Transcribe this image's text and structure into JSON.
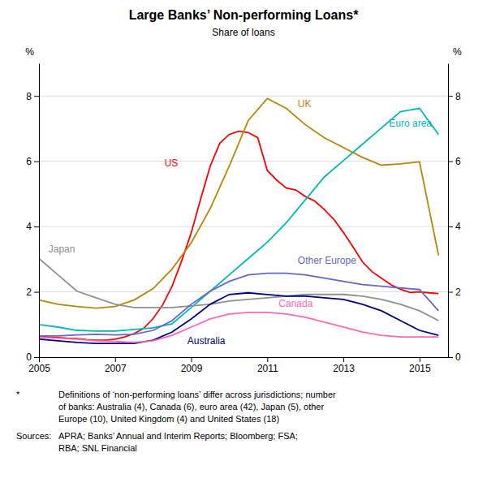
{
  "chart_data": {
    "type": "line",
    "title": "Large Banks’ Non-performing Loans*",
    "subtitle": "Share of loans",
    "ylabel": "%",
    "y2label": "%",
    "xlim": [
      2005,
      2015.75
    ],
    "xticks": [
      2005,
      2007,
      2009,
      2011,
      2013,
      2015
    ],
    "ylim": [
      0,
      9
    ],
    "yticks": [
      0,
      2,
      4,
      6,
      8
    ],
    "y2lim": [
      0,
      9
    ],
    "y2ticks": [
      0,
      2,
      4,
      6,
      8
    ],
    "grid": true,
    "series": [
      {
        "name": "US",
        "color": "#FF0000",
        "x": [
          2005.0,
          2005.25,
          2005.5,
          2005.75,
          2006.0,
          2006.25,
          2006.5,
          2006.75,
          2007.0,
          2007.25,
          2007.5,
          2007.75,
          2008.0,
          2008.25,
          2008.5,
          2008.75,
          2009.0,
          2009.25,
          2009.5,
          2009.75,
          2010.0,
          2010.25,
          2010.5,
          2010.75,
          2011.0,
          2011.25,
          2011.5,
          2011.75,
          2012.0,
          2012.25,
          2012.5,
          2012.75,
          2013.0,
          2013.25,
          2013.5,
          2013.75,
          2014.0,
          2014.25,
          2014.5,
          2014.75,
          2015.0,
          2015.25,
          2015.5
        ],
        "values": [
          0.65,
          0.62,
          0.6,
          0.58,
          0.57,
          0.54,
          0.52,
          0.52,
          0.55,
          0.62,
          0.72,
          0.88,
          1.18,
          1.6,
          2.18,
          2.95,
          3.8,
          4.85,
          5.85,
          6.55,
          6.82,
          6.92,
          6.88,
          6.72,
          5.72,
          5.42,
          5.18,
          5.12,
          4.92,
          4.78,
          4.52,
          4.22,
          3.82,
          3.38,
          2.92,
          2.62,
          2.42,
          2.22,
          2.08,
          1.98,
          2.0,
          1.97,
          1.95
        ]
      },
      {
        "name": "UK",
        "color": "#B8860B",
        "x": [
          2005.0,
          2005.5,
          2006.0,
          2006.5,
          2007.0,
          2007.5,
          2008.0,
          2008.5,
          2009.0,
          2009.5,
          2010.0,
          2010.5,
          2011.0,
          2011.5,
          2012.0,
          2012.5,
          2013.0,
          2013.5,
          2014.0,
          2014.5,
          2015.0,
          2015.5
        ],
        "values": [
          1.75,
          1.62,
          1.55,
          1.5,
          1.55,
          1.75,
          2.1,
          2.7,
          3.5,
          4.55,
          5.85,
          7.25,
          7.92,
          7.62,
          7.12,
          6.72,
          6.42,
          6.12,
          5.88,
          5.92,
          5.98,
          3.12
        ]
      },
      {
        "name": "Euro area",
        "color": "#00B8B8",
        "x": [
          2005.0,
          2005.5,
          2006.0,
          2006.5,
          2007.0,
          2007.5,
          2008.0,
          2008.5,
          2009.0,
          2009.5,
          2010.0,
          2010.5,
          2011.0,
          2011.5,
          2012.0,
          2012.5,
          2013.0,
          2013.5,
          2014.0,
          2014.5,
          2015.0,
          2015.5
        ],
        "values": [
          1.0,
          0.92,
          0.82,
          0.8,
          0.8,
          0.85,
          0.9,
          1.02,
          1.52,
          2.02,
          2.52,
          3.02,
          3.52,
          4.12,
          4.82,
          5.52,
          6.02,
          6.52,
          7.02,
          7.52,
          7.62,
          6.82
        ]
      },
      {
        "name": "Japan",
        "color": "#909090",
        "x": [
          2005.0,
          2005.5,
          2006.0,
          2006.5,
          2007.0,
          2007.5,
          2008.0,
          2008.5,
          2009.0,
          2009.5,
          2010.0,
          2010.5,
          2011.0,
          2011.5,
          2012.0,
          2012.5,
          2013.0,
          2013.5,
          2014.0,
          2014.5,
          2015.0,
          2015.5
        ],
        "values": [
          3.02,
          2.52,
          2.02,
          1.82,
          1.62,
          1.52,
          1.52,
          1.52,
          1.57,
          1.62,
          1.72,
          1.77,
          1.82,
          1.87,
          1.92,
          1.92,
          1.92,
          1.87,
          1.77,
          1.62,
          1.42,
          1.12
        ]
      },
      {
        "name": "Other Europe",
        "color": "#6666CC",
        "x": [
          2005.0,
          2005.5,
          2006.0,
          2006.5,
          2007.0,
          2007.5,
          2008.0,
          2008.5,
          2009.0,
          2009.5,
          2010.0,
          2010.5,
          2011.0,
          2011.5,
          2012.0,
          2012.5,
          2013.0,
          2013.5,
          2014.0,
          2014.5,
          2015.0,
          2015.5
        ],
        "values": [
          0.65,
          0.65,
          0.68,
          0.7,
          0.68,
          0.7,
          0.82,
          1.12,
          1.62,
          2.02,
          2.32,
          2.52,
          2.57,
          2.57,
          2.52,
          2.42,
          2.32,
          2.22,
          2.17,
          2.12,
          2.07,
          1.42
        ]
      },
      {
        "name": "Australia",
        "color": "#000080",
        "x": [
          2005.0,
          2005.5,
          2006.0,
          2006.5,
          2007.0,
          2007.5,
          2008.0,
          2008.5,
          2009.0,
          2009.5,
          2010.0,
          2010.5,
          2011.0,
          2011.5,
          2012.0,
          2012.5,
          2013.0,
          2013.5,
          2014.0,
          2014.5,
          2015.0,
          2015.5
        ],
        "values": [
          0.55,
          0.5,
          0.45,
          0.42,
          0.42,
          0.42,
          0.52,
          0.77,
          1.17,
          1.62,
          1.92,
          1.97,
          1.92,
          1.87,
          1.87,
          1.82,
          1.77,
          1.62,
          1.42,
          1.12,
          0.82,
          0.67
        ]
      },
      {
        "name": "Canada",
        "color": "#FF69B4",
        "x": [
          2005.0,
          2005.5,
          2006.0,
          2006.5,
          2007.0,
          2007.5,
          2008.0,
          2008.5,
          2009.0,
          2009.5,
          2010.0,
          2010.5,
          2011.0,
          2011.5,
          2012.0,
          2012.5,
          2013.0,
          2013.5,
          2014.0,
          2014.5,
          2015.0,
          2015.5
        ],
        "values": [
          0.6,
          0.58,
          0.55,
          0.5,
          0.48,
          0.45,
          0.5,
          0.67,
          0.92,
          1.17,
          1.32,
          1.37,
          1.37,
          1.32,
          1.22,
          1.07,
          0.92,
          0.77,
          0.67,
          0.62,
          0.62,
          0.62
        ]
      }
    ],
    "annotations": [
      {
        "text": "US",
        "x": 2008.3,
        "y": 5.8,
        "color": "#FF0000"
      },
      {
        "text": "UK",
        "x": 2011.8,
        "y": 7.6,
        "color": "#B8860B"
      },
      {
        "text": "Euro area",
        "x": 2014.2,
        "y": 7.0,
        "color": "#00B8B8"
      },
      {
        "text": "Japan",
        "x": 2005.25,
        "y": 3.15,
        "color": "#909090"
      },
      {
        "text": "Other Europe",
        "x": 2011.8,
        "y": 2.8,
        "color": "#6666CC"
      },
      {
        "text": "Australia",
        "x": 2008.9,
        "y": 0.35,
        "color": "#000080"
      },
      {
        "text": "Canada",
        "x": 2011.3,
        "y": 1.5,
        "color": "#FF69B4"
      }
    ],
    "footnotes": [
      {
        "key": "*",
        "lines": [
          "Definitions of ‘non-performing loans’ differ across jurisdictions; number",
          "of banks: Australia (4), Canada (6), euro area (42), Japan (5), other",
          "Europe (10), United Kingdom (4) and United States (18)"
        ]
      },
      {
        "key": "Sources:",
        "lines": [
          "APRA; Banks’ Annual and Interim Reports; Bloomberg; FSA;",
          "RBA; SNL Financial"
        ]
      }
    ]
  }
}
